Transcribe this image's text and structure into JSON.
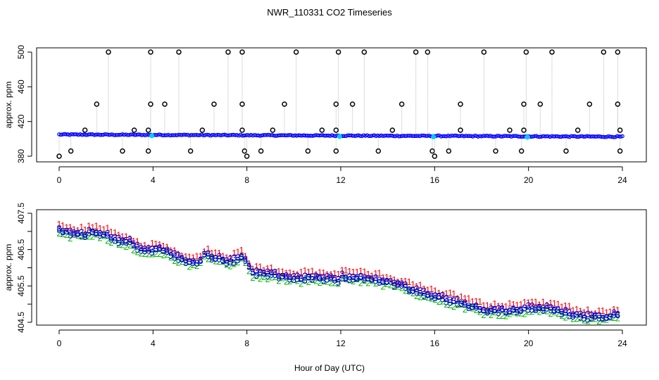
{
  "title": "NWR_110331  CO2 Timeseries",
  "xlabel": "Hour of Day (UTC)",
  "colors": {
    "raw_points": "#000000",
    "raw_line": "#bbbbbb",
    "mean_points": "#0000ff",
    "mean_accent": "#00ccff",
    "series1": "#ff0000",
    "series2": "#00bb00",
    "series3": "#0000cc",
    "series5": "#0000cc"
  },
  "chart_data": [
    {
      "type": "scatter",
      "ylabel": "approx. ppm",
      "xlim": [
        0,
        24
      ],
      "ylim": [
        380,
        500
      ],
      "xticks": [
        0,
        4,
        8,
        12,
        16,
        20,
        24
      ],
      "yticks": [
        380,
        420,
        460,
        500
      ],
      "ytick_labels": [
        "380",
        "420",
        "460",
        "500"
      ],
      "baseline": {
        "start": 405.0,
        "end": 402.5
      },
      "spikes_high": [
        {
          "x": 2.1,
          "y": 500
        },
        {
          "x": 3.9,
          "y": 500
        },
        {
          "x": 5.1,
          "y": 500
        },
        {
          "x": 7.2,
          "y": 500
        },
        {
          "x": 7.8,
          "y": 500
        },
        {
          "x": 10.1,
          "y": 500
        },
        {
          "x": 11.9,
          "y": 500
        },
        {
          "x": 13.0,
          "y": 500
        },
        {
          "x": 15.2,
          "y": 500
        },
        {
          "x": 15.7,
          "y": 500
        },
        {
          "x": 18.1,
          "y": 500
        },
        {
          "x": 19.9,
          "y": 500
        },
        {
          "x": 21.0,
          "y": 500
        },
        {
          "x": 23.2,
          "y": 500
        },
        {
          "x": 23.8,
          "y": 500
        },
        {
          "x": 1.6,
          "y": 440
        },
        {
          "x": 3.9,
          "y": 440
        },
        {
          "x": 4.5,
          "y": 440
        },
        {
          "x": 6.6,
          "y": 440
        },
        {
          "x": 7.8,
          "y": 440
        },
        {
          "x": 9.6,
          "y": 440
        },
        {
          "x": 11.8,
          "y": 440
        },
        {
          "x": 12.5,
          "y": 440
        },
        {
          "x": 14.6,
          "y": 440
        },
        {
          "x": 17.1,
          "y": 440
        },
        {
          "x": 19.8,
          "y": 440
        },
        {
          "x": 20.5,
          "y": 440
        },
        {
          "x": 22.6,
          "y": 440
        },
        {
          "x": 23.8,
          "y": 440
        },
        {
          "x": 1.1,
          "y": 410
        },
        {
          "x": 3.2,
          "y": 410
        },
        {
          "x": 3.8,
          "y": 410
        },
        {
          "x": 6.1,
          "y": 410
        },
        {
          "x": 7.8,
          "y": 410
        },
        {
          "x": 9.1,
          "y": 410
        },
        {
          "x": 11.2,
          "y": 410
        },
        {
          "x": 11.8,
          "y": 410
        },
        {
          "x": 14.2,
          "y": 410
        },
        {
          "x": 17.1,
          "y": 410
        },
        {
          "x": 19.2,
          "y": 410
        },
        {
          "x": 19.8,
          "y": 410
        },
        {
          "x": 22.1,
          "y": 410
        },
        {
          "x": 23.9,
          "y": 410
        }
      ],
      "spikes_low": [
        {
          "x": 0.0,
          "y": 380
        },
        {
          "x": 0.5,
          "y": 386
        },
        {
          "x": 2.7,
          "y": 386
        },
        {
          "x": 3.8,
          "y": 386
        },
        {
          "x": 5.6,
          "y": 386
        },
        {
          "x": 7.9,
          "y": 386
        },
        {
          "x": 8.0,
          "y": 380
        },
        {
          "x": 8.6,
          "y": 386
        },
        {
          "x": 10.6,
          "y": 386
        },
        {
          "x": 11.8,
          "y": 386
        },
        {
          "x": 13.6,
          "y": 386
        },
        {
          "x": 15.9,
          "y": 386
        },
        {
          "x": 16.0,
          "y": 380
        },
        {
          "x": 16.6,
          "y": 386
        },
        {
          "x": 18.6,
          "y": 386
        },
        {
          "x": 19.7,
          "y": 386
        },
        {
          "x": 21.6,
          "y": 386
        },
        {
          "x": 23.9,
          "y": 386
        }
      ],
      "highlight_x": [
        3.95,
        11.95,
        15.95,
        19.95
      ]
    },
    {
      "type": "scatter",
      "ylabel": "approx. ppm",
      "xlim": [
        0,
        24
      ],
      "ylim": [
        404.5,
        407.5
      ],
      "xticks": [
        0,
        4,
        8,
        12,
        16,
        20,
        24
      ],
      "yticks": [
        404.5,
        405.0,
        405.5,
        406.0,
        406.5,
        407.0,
        407.5
      ],
      "ytick_labels": [
        "404.5",
        "",
        "405.5",
        "",
        "406.5",
        "",
        "407.5"
      ],
      "series": [
        {
          "name": "1",
          "offset": 0.12
        },
        {
          "name": "2",
          "offset": -0.12
        },
        {
          "name": "3",
          "offset": 0.0
        },
        {
          "name": "5",
          "offset": -0.05
        }
      ],
      "trend": [
        {
          "x": 0.0,
          "y": 407.05
        },
        {
          "x": 0.5,
          "y": 407.0
        },
        {
          "x": 1.0,
          "y": 406.95
        },
        {
          "x": 1.5,
          "y": 407.05
        },
        {
          "x": 2.0,
          "y": 406.95
        },
        {
          "x": 2.5,
          "y": 406.8
        },
        {
          "x": 3.0,
          "y": 406.75
        },
        {
          "x": 3.4,
          "y": 406.55
        },
        {
          "x": 3.8,
          "y": 406.5
        },
        {
          "x": 4.2,
          "y": 406.55
        },
        {
          "x": 4.8,
          "y": 406.4
        },
        {
          "x": 5.5,
          "y": 406.2
        },
        {
          "x": 5.9,
          "y": 406.15
        },
        {
          "x": 6.2,
          "y": 406.4
        },
        {
          "x": 6.8,
          "y": 406.3
        },
        {
          "x": 7.3,
          "y": 406.2
        },
        {
          "x": 7.8,
          "y": 406.35
        },
        {
          "x": 8.0,
          "y": 406.2
        },
        {
          "x": 8.2,
          "y": 405.9
        },
        {
          "x": 9.0,
          "y": 405.85
        },
        {
          "x": 10.0,
          "y": 405.75
        },
        {
          "x": 11.0,
          "y": 405.75
        },
        {
          "x": 11.9,
          "y": 405.7
        },
        {
          "x": 12.0,
          "y": 405.8
        },
        {
          "x": 13.0,
          "y": 405.75
        },
        {
          "x": 14.0,
          "y": 405.65
        },
        {
          "x": 15.0,
          "y": 405.45
        },
        {
          "x": 15.8,
          "y": 405.3
        },
        {
          "x": 16.0,
          "y": 405.25
        },
        {
          "x": 17.0,
          "y": 405.1
        },
        {
          "x": 18.0,
          "y": 404.9
        },
        {
          "x": 19.0,
          "y": 404.85
        },
        {
          "x": 19.9,
          "y": 404.9
        },
        {
          "x": 20.0,
          "y": 404.95
        },
        {
          "x": 21.0,
          "y": 404.9
        },
        {
          "x": 22.0,
          "y": 404.75
        },
        {
          "x": 23.0,
          "y": 404.65
        },
        {
          "x": 23.8,
          "y": 404.75
        }
      ]
    }
  ]
}
